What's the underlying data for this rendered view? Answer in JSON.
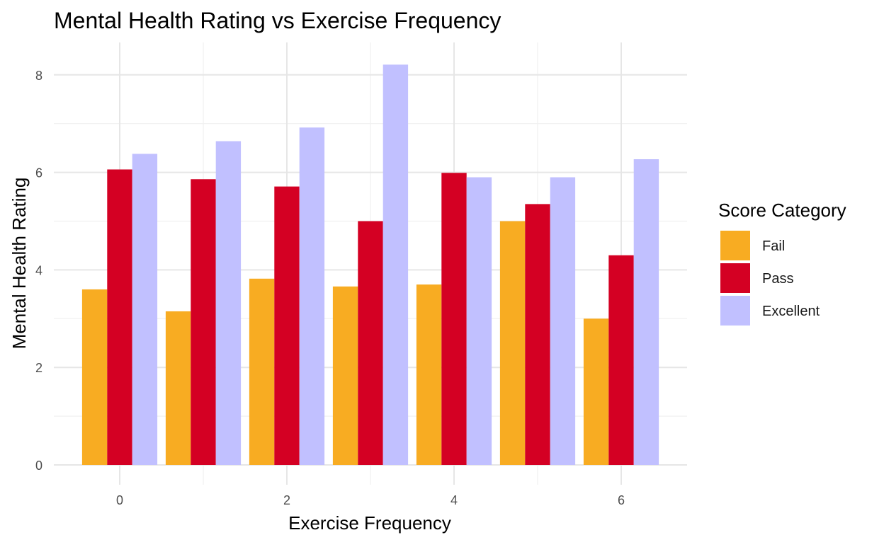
{
  "chart_data": {
    "type": "bar",
    "title": "Mental Health Rating vs Exercise Frequency",
    "xlabel": "Exercise Frequency",
    "ylabel": "Mental Health Rating",
    "x": [
      0,
      1,
      2,
      3,
      4,
      5,
      6
    ],
    "x_ticks": [
      "0",
      "2",
      "4",
      "6"
    ],
    "x_tick_values": [
      0,
      2,
      4,
      6
    ],
    "y_ticks": [
      "0",
      "2",
      "4",
      "6",
      "8"
    ],
    "y_tick_values": [
      0,
      2,
      4,
      6,
      8
    ],
    "xlim": [
      -0.8,
      6.8
    ],
    "ylim": [
      0,
      8.4
    ],
    "grid": true,
    "legend": {
      "title": "Score Category",
      "placement": "right"
    },
    "series": [
      {
        "name": "Fail",
        "color": "#F8AC22",
        "values": [
          3.6,
          3.15,
          3.82,
          3.66,
          3.7,
          5.0,
          3.0
        ]
      },
      {
        "name": "Pass",
        "color": "#D40023",
        "values": [
          6.06,
          5.86,
          5.71,
          5.0,
          5.99,
          5.35,
          4.3
        ]
      },
      {
        "name": "Excellent",
        "color": "#C1C0FF",
        "values": [
          6.38,
          6.64,
          6.92,
          8.21,
          5.9,
          5.9,
          6.27
        ]
      }
    ]
  }
}
